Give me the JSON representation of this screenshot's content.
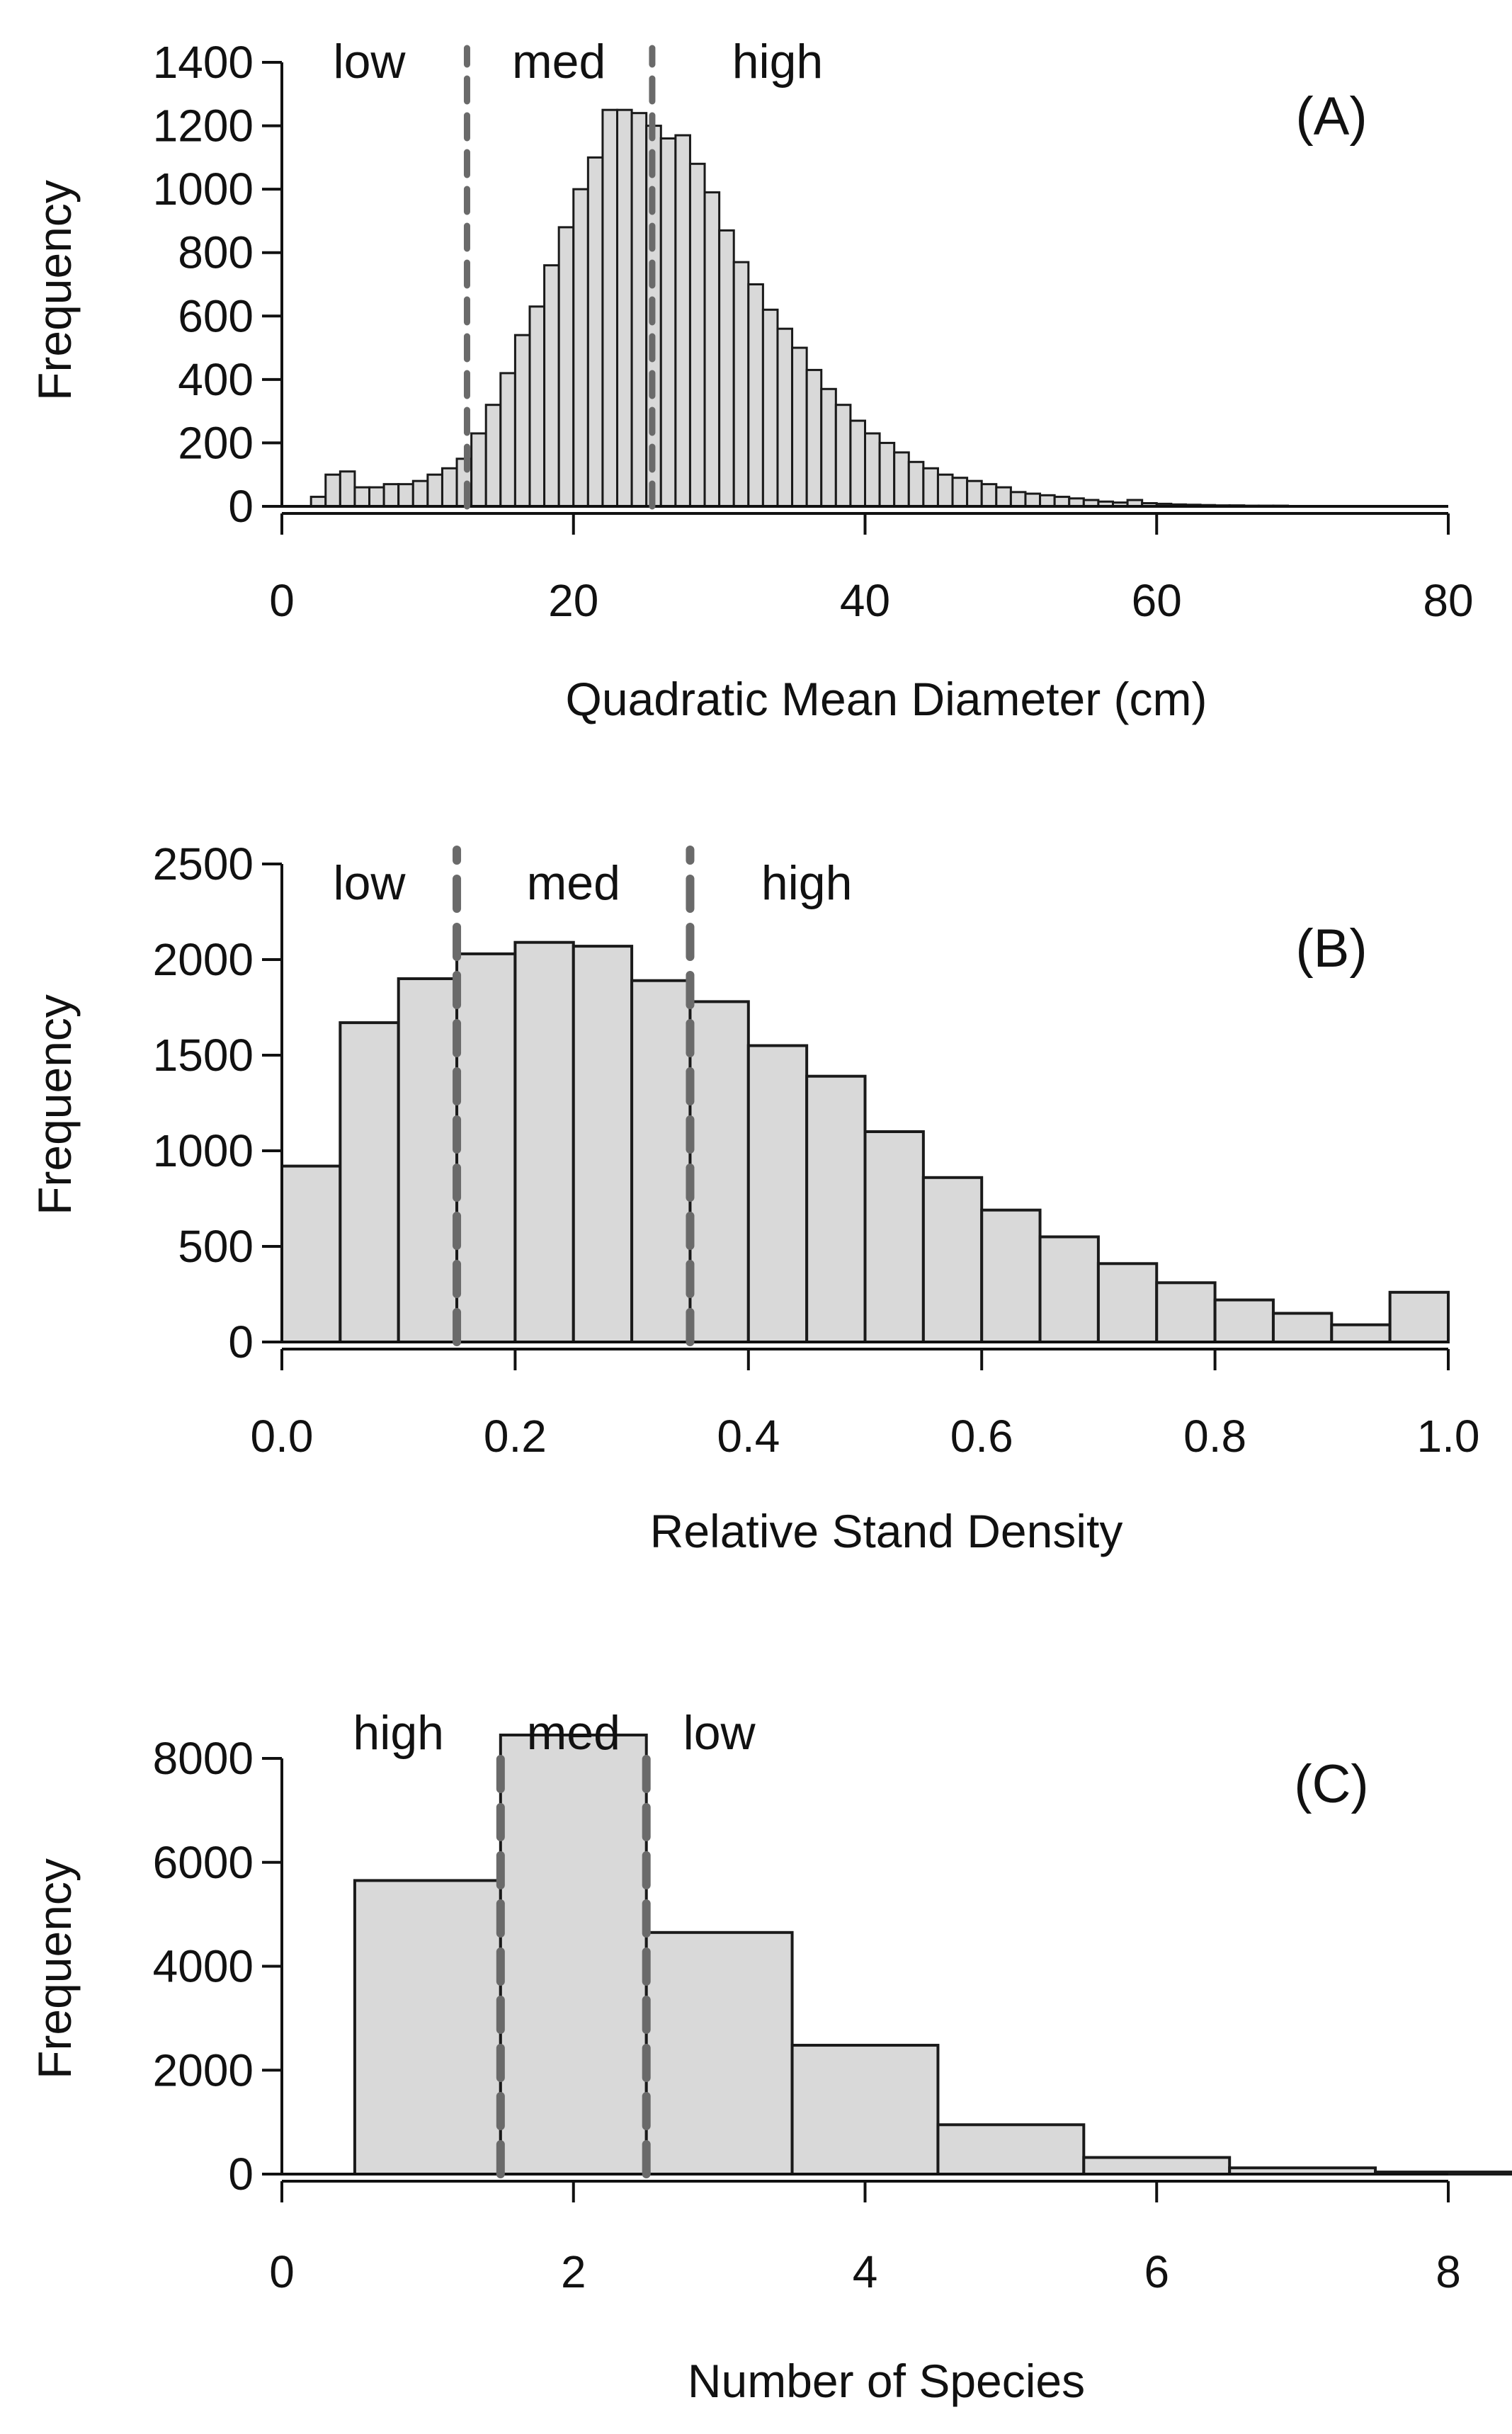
{
  "colors": {
    "bar_fill": "#d9d9d9",
    "bar_stroke": "#1a1a1a",
    "axis": "#111111",
    "cutoff_line": "#6a6a6a"
  },
  "chart_data": [
    {
      "type": "bar",
      "panel": "(A)",
      "xlabel": "Quadratic Mean Diameter (cm)",
      "ylabel": "Frequency",
      "xlim": [
        0,
        80
      ],
      "ylim": [
        0,
        1400
      ],
      "xticks": [
        0,
        20,
        40,
        60,
        80
      ],
      "yticks": [
        0,
        200,
        400,
        600,
        800,
        1000,
        1200,
        1400
      ],
      "bin_width": 1,
      "bin_start": 0,
      "values": [
        0,
        0,
        30,
        100,
        110,
        60,
        60,
        70,
        70,
        80,
        100,
        120,
        150,
        230,
        320,
        420,
        540,
        630,
        760,
        880,
        1000,
        1100,
        1250,
        1250,
        1240,
        1200,
        1160,
        1170,
        1080,
        990,
        870,
        770,
        700,
        620,
        560,
        500,
        430,
        370,
        320,
        270,
        230,
        200,
        170,
        140,
        120,
        100,
        90,
        80,
        70,
        60,
        45,
        40,
        35,
        30,
        25,
        20,
        15,
        12,
        20,
        10,
        8,
        6,
        5,
        4,
        3,
        3,
        2,
        2,
        2,
        1,
        1,
        1,
        1,
        0,
        0,
        0,
        0,
        0,
        0,
        0
      ],
      "cutoffs": [
        12.7,
        25.4
      ],
      "class_labels": [
        {
          "text": "low",
          "x": 6
        },
        {
          "text": "med",
          "x": 19
        },
        {
          "text": "high",
          "x": 34
        }
      ]
    },
    {
      "type": "bar",
      "panel": "(B)",
      "xlabel": "Relative Stand Density",
      "ylabel": "Frequency",
      "xlim": [
        0,
        1
      ],
      "ylim": [
        0,
        2500
      ],
      "xticks": [
        "0.0",
        "0.2",
        "0.4",
        "0.6",
        "0.8",
        "1.0"
      ],
      "xtick_values": [
        0,
        0.2,
        0.4,
        0.6,
        0.8,
        1.0
      ],
      "yticks": [
        0,
        500,
        1000,
        1500,
        2000,
        2500
      ],
      "bin_width": 0.05,
      "bin_start": 0,
      "values": [
        920,
        1670,
        1900,
        2030,
        2090,
        2070,
        1890,
        1780,
        1550,
        1390,
        1100,
        860,
        690,
        550,
        410,
        310,
        220,
        150,
        90,
        260
      ],
      "cutoffs": [
        0.15,
        0.35
      ],
      "class_labels": [
        {
          "text": "low",
          "x": 0.075
        },
        {
          "text": "med",
          "x": 0.25
        },
        {
          "text": "high",
          "x": 0.45
        }
      ]
    },
    {
      "type": "bar",
      "panel": "(C)",
      "xlabel": "Number of Species",
      "ylabel": "Frequency",
      "xlim": [
        0,
        8
      ],
      "ylim": [
        0,
        8500
      ],
      "xticks": [
        0,
        2,
        4,
        6,
        8
      ],
      "yticks": [
        0,
        2000,
        4000,
        6000,
        8000
      ],
      "bin_width": 1,
      "bin_start": 0.5,
      "values": [
        5650,
        8450,
        4650,
        2480,
        950,
        320,
        120,
        40
      ],
      "cutoffs": [
        1.5,
        2.5
      ],
      "class_labels": [
        {
          "text": "high",
          "x": 0.8
        },
        {
          "text": "med",
          "x": 2.0
        },
        {
          "text": "low",
          "x": 3.0
        }
      ]
    }
  ]
}
